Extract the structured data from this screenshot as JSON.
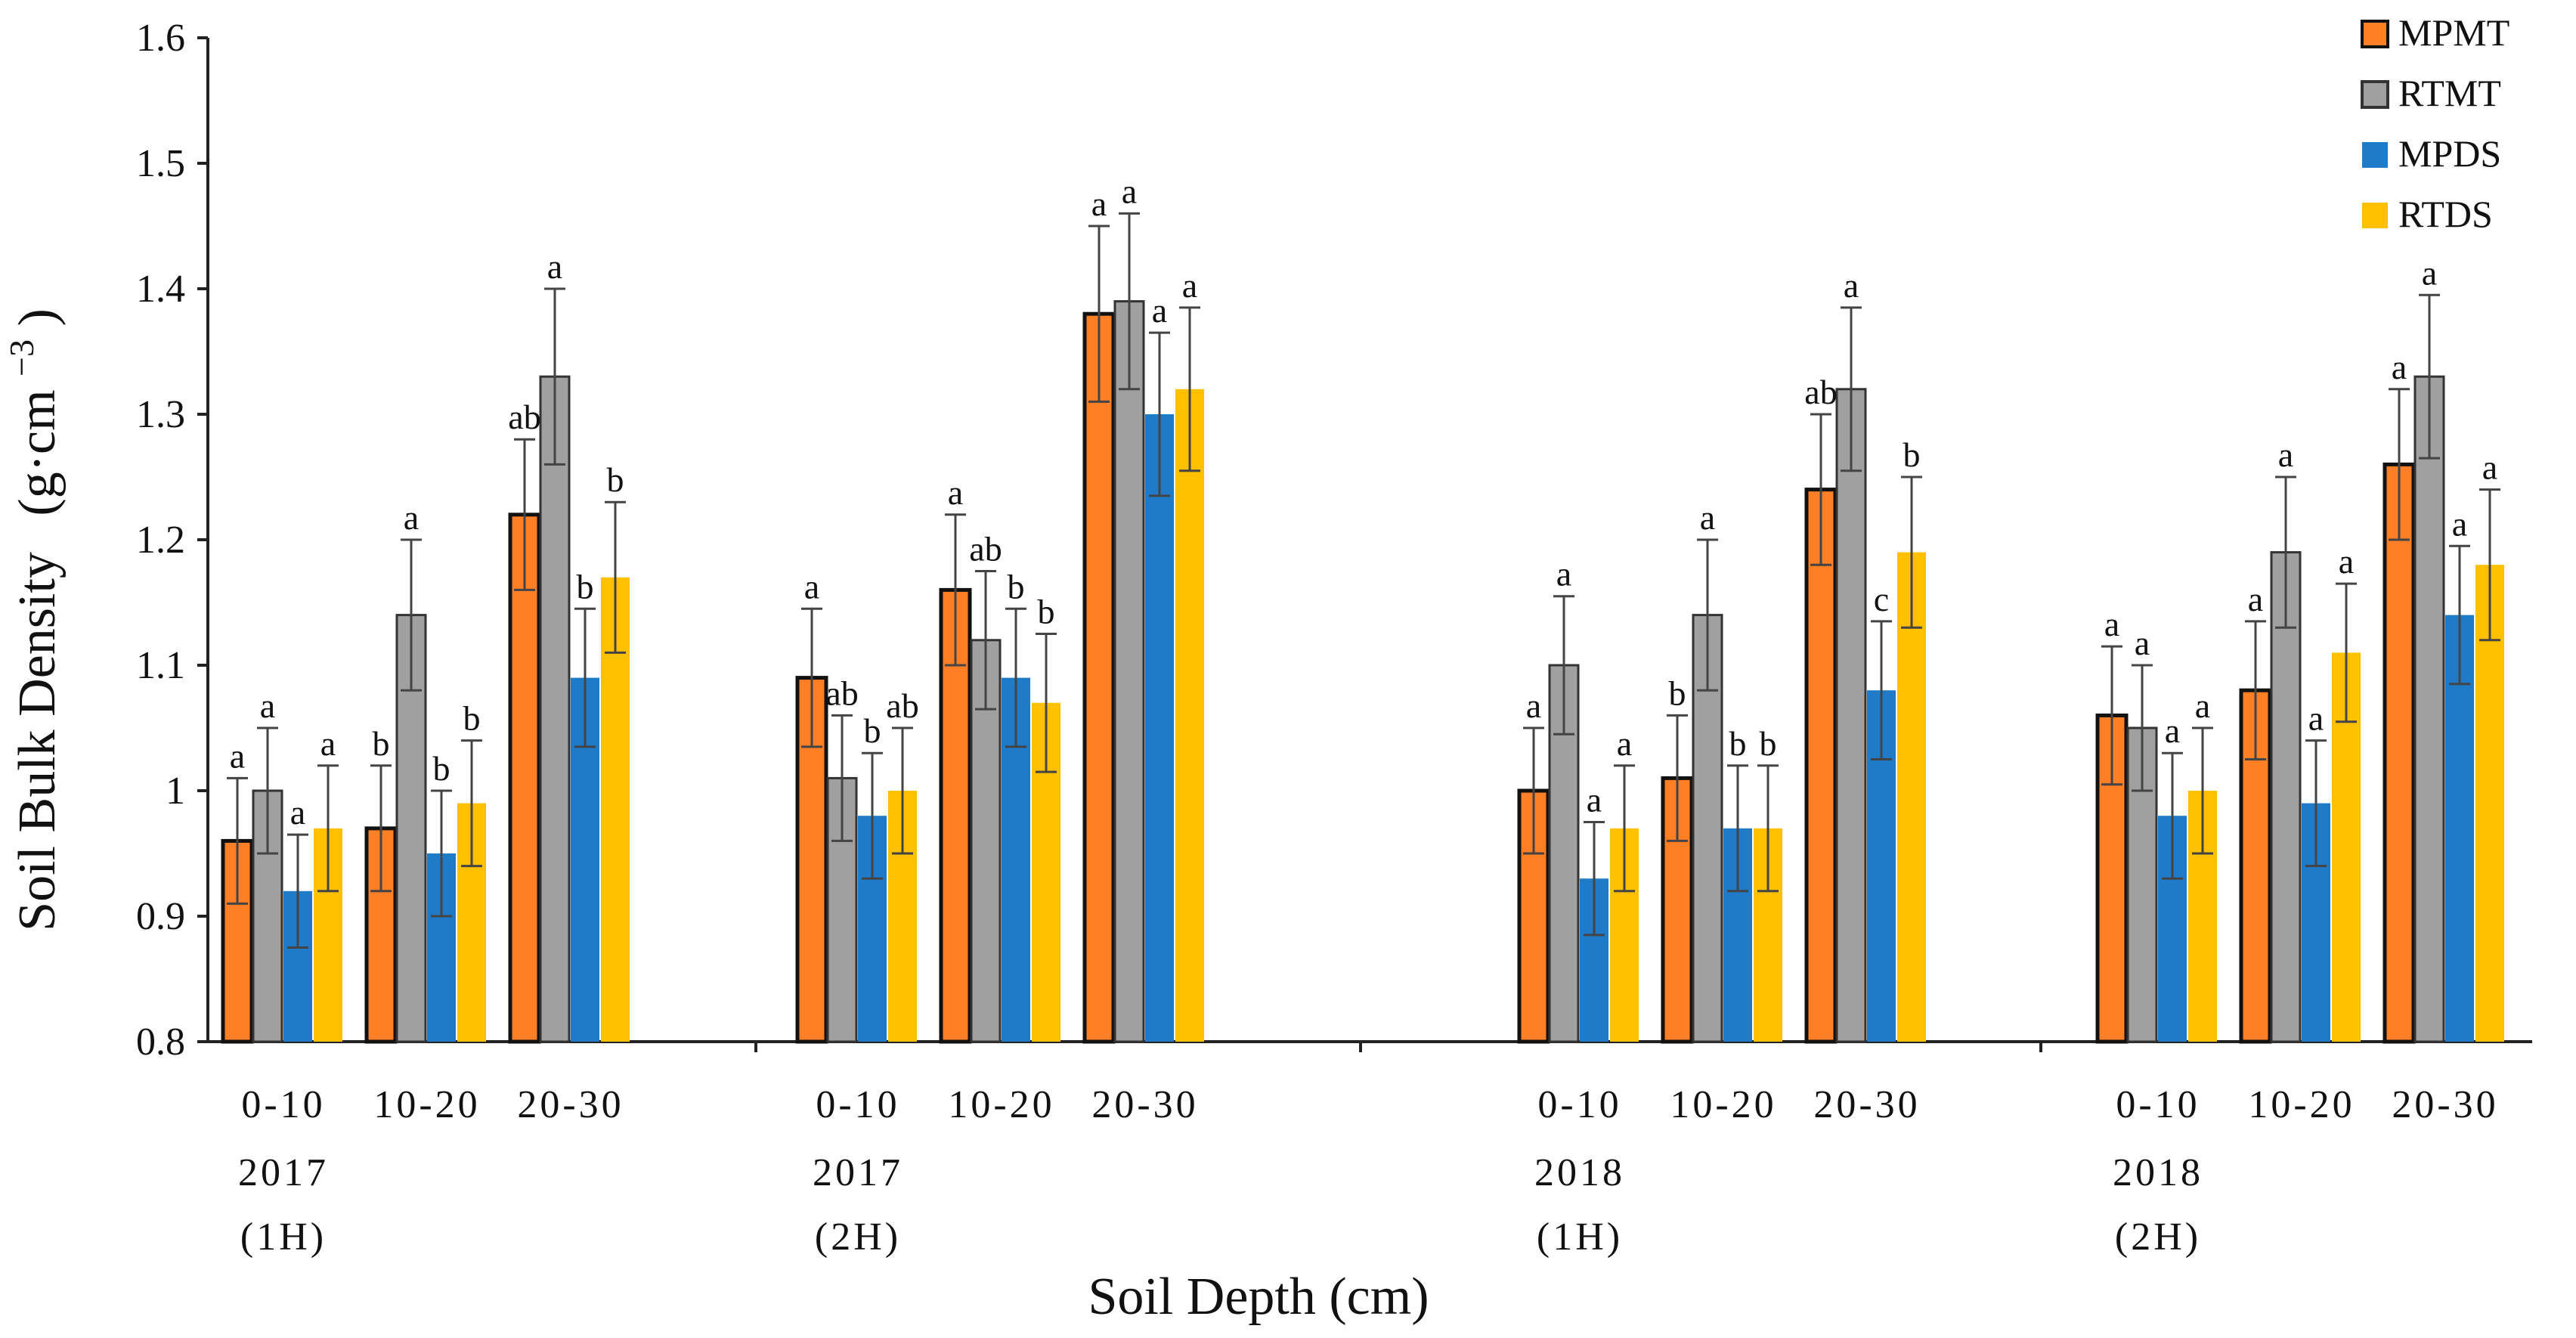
{
  "chart_data": {
    "type": "bar",
    "ylabel": "Soil Bulk Density",
    "ylabel_unit_base": "(g·cm",
    "ylabel_unit_exp": "−3",
    "ylabel_unit_close": ")",
    "xlabel": "Soil Depth (cm)",
    "ylim": [
      0.8,
      1.6
    ],
    "yticks": [
      "0.8",
      "0.9",
      "1",
      "1.1",
      "1.2",
      "1.3",
      "1.4",
      "1.5",
      "1.6"
    ],
    "legend_position": "top-right",
    "series": [
      {
        "name": "MPMT",
        "color": "#FF7F27"
      },
      {
        "name": "RTMT",
        "color": "#A0A0A0"
      },
      {
        "name": "MPDS",
        "color": "#1F7BC8"
      },
      {
        "name": "RTDS",
        "color": "#FFC000"
      }
    ],
    "groups": [
      {
        "year": "2017",
        "half": "(1H)",
        "depths": [
          {
            "label": "0-10",
            "values": [
              0.96,
              1.0,
              0.92,
              0.97
            ],
            "errors": [
              0.05,
              0.05,
              0.045,
              0.05
            ],
            "letters": [
              "a",
              "a",
              "a",
              "a"
            ]
          },
          {
            "label": "10-20",
            "values": [
              0.97,
              1.14,
              0.95,
              0.99
            ],
            "errors": [
              0.05,
              0.06,
              0.05,
              0.05
            ],
            "letters": [
              "b",
              "a",
              "b",
              "b"
            ]
          },
          {
            "label": "20-30",
            "values": [
              1.22,
              1.33,
              1.09,
              1.17
            ],
            "errors": [
              0.06,
              0.07,
              0.055,
              0.06
            ],
            "letters": [
              "ab",
              "a",
              "b",
              "b"
            ]
          }
        ]
      },
      {
        "year": "2017",
        "half": "(2H)",
        "depths": [
          {
            "label": "0-10",
            "values": [
              1.09,
              1.01,
              0.98,
              1.0
            ],
            "errors": [
              0.055,
              0.05,
              0.05,
              0.05
            ],
            "letters": [
              "a",
              "ab",
              "b",
              "ab"
            ]
          },
          {
            "label": "10-20",
            "values": [
              1.16,
              1.12,
              1.09,
              1.07
            ],
            "errors": [
              0.06,
              0.055,
              0.055,
              0.055
            ],
            "letters": [
              "a",
              "ab",
              "b",
              "b"
            ]
          },
          {
            "label": "20-30",
            "values": [
              1.38,
              1.39,
              1.3,
              1.32
            ],
            "errors": [
              0.07,
              0.07,
              0.065,
              0.065
            ],
            "letters": [
              "a",
              "a",
              "a",
              "a"
            ]
          }
        ]
      },
      {
        "year": "2018",
        "half": "(1H)",
        "depths": [
          {
            "label": "0-10",
            "values": [
              1.0,
              1.1,
              0.93,
              0.97
            ],
            "errors": [
              0.05,
              0.055,
              0.045,
              0.05
            ],
            "letters": [
              "a",
              "a",
              "a",
              "a"
            ]
          },
          {
            "label": "10-20",
            "values": [
              1.01,
              1.14,
              0.97,
              0.97
            ],
            "errors": [
              0.05,
              0.06,
              0.05,
              0.05
            ],
            "letters": [
              "b",
              "a",
              "b",
              "b"
            ]
          },
          {
            "label": "20-30",
            "values": [
              1.24,
              1.32,
              1.08,
              1.19
            ],
            "errors": [
              0.06,
              0.065,
              0.055,
              0.06
            ],
            "letters": [
              "ab",
              "a",
              "c",
              "b"
            ]
          }
        ]
      },
      {
        "year": "2018",
        "half": "(2H)",
        "depths": [
          {
            "label": "0-10",
            "values": [
              1.06,
              1.05,
              0.98,
              1.0
            ],
            "errors": [
              0.055,
              0.05,
              0.05,
              0.05
            ],
            "letters": [
              "a",
              "a",
              "a",
              "a"
            ]
          },
          {
            "label": "10-20",
            "values": [
              1.08,
              1.19,
              0.99,
              1.11
            ],
            "errors": [
              0.055,
              0.06,
              0.05,
              0.055
            ],
            "letters": [
              "a",
              "a",
              "a",
              "a"
            ]
          },
          {
            "label": "20-30",
            "values": [
              1.26,
              1.33,
              1.14,
              1.18
            ],
            "errors": [
              0.06,
              0.065,
              0.055,
              0.06
            ],
            "letters": [
              "a",
              "a",
              "a",
              "a"
            ]
          }
        ]
      }
    ]
  }
}
